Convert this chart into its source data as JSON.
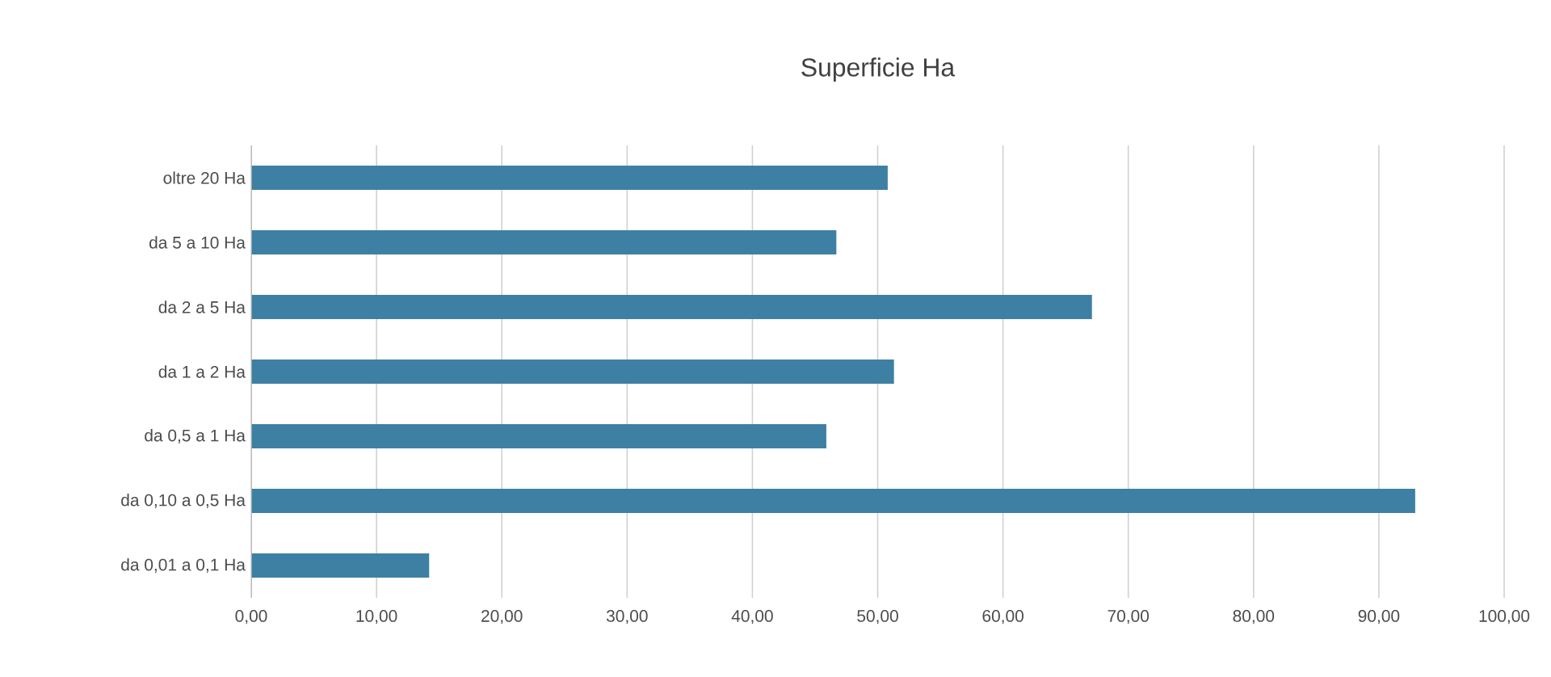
{
  "chart_data": {
    "type": "bar",
    "orientation": "horizontal",
    "title": "Superficie Ha",
    "categories": [
      "oltre 20 Ha",
      "da 5 a 10 Ha",
      "da 2 a 5 Ha",
      "da 1 a 2 Ha",
      "da 0,5 a 1 Ha",
      "da 0,10 a 0,5 Ha",
      "da 0,01 a 0,1 Ha"
    ],
    "values": [
      50.8,
      46.7,
      67.1,
      51.3,
      45.9,
      92.9,
      14.2
    ],
    "color": "#3e80a3",
    "xlim": [
      0,
      100
    ],
    "xticks": [
      {
        "value": 0,
        "label": "0,00"
      },
      {
        "value": 10,
        "label": "10,00"
      },
      {
        "value": 20,
        "label": "20,00"
      },
      {
        "value": 30,
        "label": "30,00"
      },
      {
        "value": 40,
        "label": "40,00"
      },
      {
        "value": 50,
        "label": "50,00"
      },
      {
        "value": 60,
        "label": "60,00"
      },
      {
        "value": 70,
        "label": "70,00"
      },
      {
        "value": 80,
        "label": "80,00"
      },
      {
        "value": 90,
        "label": "90,00"
      },
      {
        "value": 100,
        "label": "100,00"
      }
    ],
    "grid": "x"
  }
}
